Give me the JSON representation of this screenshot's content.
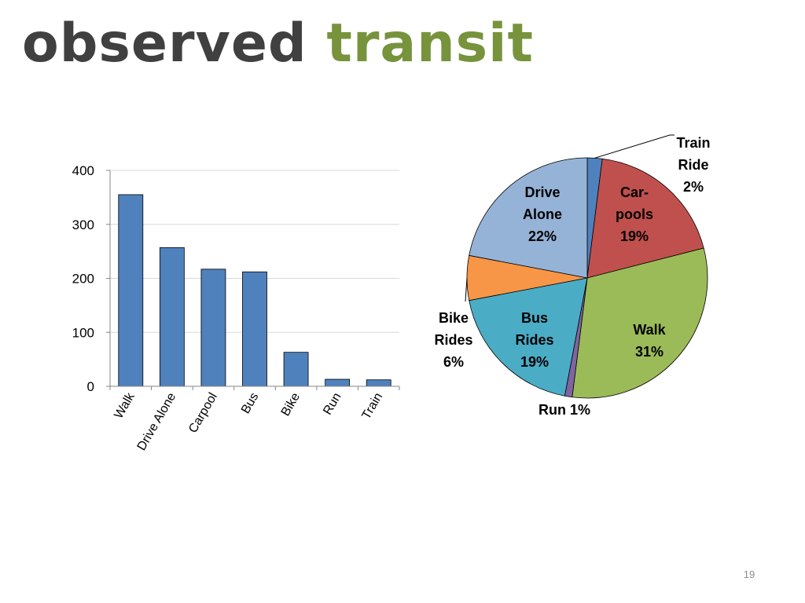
{
  "title": {
    "word1": "observed",
    "word2": "transit"
  },
  "page_number": "19",
  "colors": {
    "title_dark": "#404040",
    "title_accent": "#77933c",
    "bar_fill": "#4f81bd"
  },
  "chart_data": [
    {
      "type": "bar",
      "categories": [
        "Walk",
        "Drive Alone",
        "Carpool",
        "Bus",
        "Bike",
        "Run",
        "Train"
      ],
      "values": [
        355,
        257,
        217,
        212,
        63,
        13,
        12
      ],
      "ylim": [
        0,
        400
      ],
      "yticks": [
        0,
        100,
        200,
        300,
        400
      ],
      "ytick_labels": [
        "0",
        "100",
        "200",
        "300",
        "400"
      ],
      "grid": true,
      "legend": "none"
    },
    {
      "type": "pie",
      "slices": [
        {
          "label_lines": [
            "Train",
            "Ride",
            "2%"
          ],
          "value": 2,
          "color": "#4f81bd"
        },
        {
          "label_lines": [
            "Car-",
            "pools",
            "19%"
          ],
          "value": 19,
          "color": "#c0504d"
        },
        {
          "label_lines": [
            "Walk",
            "31%"
          ],
          "value": 31,
          "color": "#9bbb59"
        },
        {
          "label_lines": [
            "Run 1%"
          ],
          "value": 1,
          "color": "#8064a2"
        },
        {
          "label_lines": [
            "Bus",
            "Rides",
            "19%"
          ],
          "value": 19,
          "color": "#4bacc6"
        },
        {
          "label_lines": [
            "Bike",
            "Rides",
            "6%"
          ],
          "value": 6,
          "color": "#f79646"
        },
        {
          "label_lines": [
            "Drive",
            "Alone",
            "22%"
          ],
          "value": 22,
          "color": "#95b3d7"
        }
      ],
      "start": "12 o'clock",
      "direction": "clockwise",
      "legend": "none"
    }
  ]
}
